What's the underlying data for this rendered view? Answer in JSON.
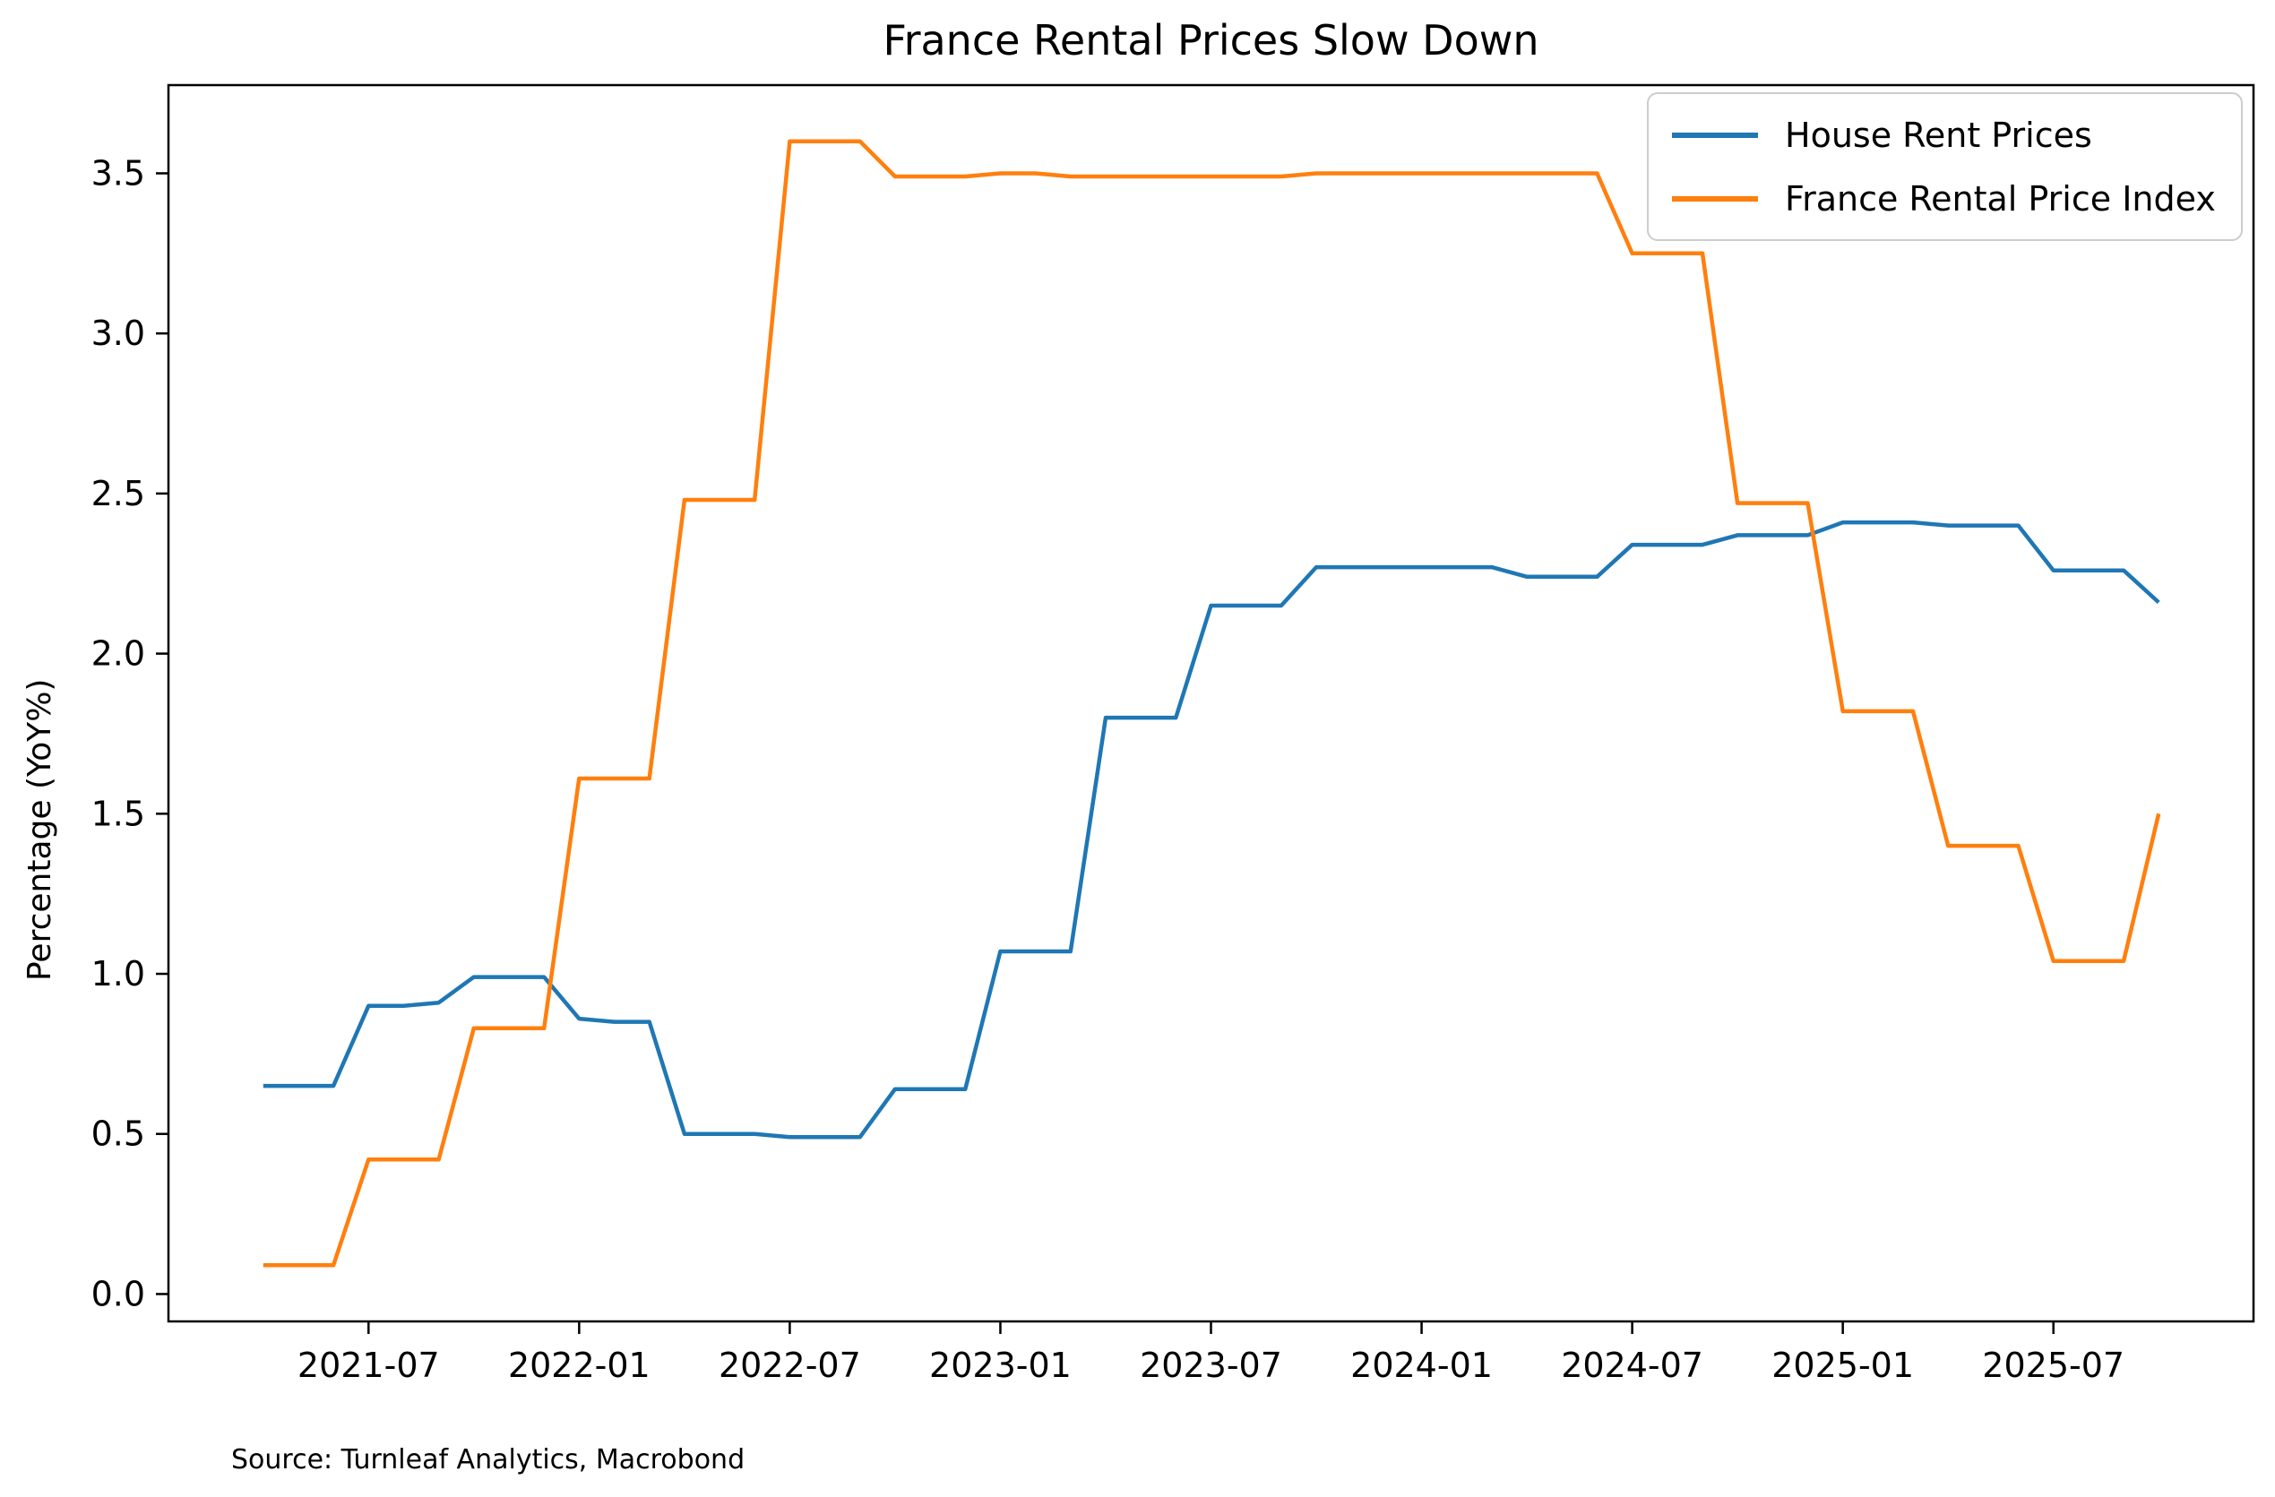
{
  "title": "France Rental Prices Slow Down",
  "source": "Source: Turnleaf Analytics, Macrobond",
  "y_axis_label": "Percentage (YoY%)",
  "legend": {
    "items": [
      {
        "label": "House Rent Prices",
        "color": "#1f77b4"
      },
      {
        "label": "France Rental Price Index",
        "color": "#ff7f0e"
      }
    ]
  },
  "chart_data": {
    "type": "line",
    "title": "France Rental Prices Slow Down",
    "xlabel": "",
    "ylabel": "Percentage (YoY%)",
    "grid": false,
    "legend_position": "upper right",
    "axis_color": "#000000",
    "x": [
      "2021-04",
      "2021-05",
      "2021-06",
      "2021-07",
      "2021-08",
      "2021-09",
      "2021-10",
      "2021-11",
      "2021-12",
      "2022-01",
      "2022-02",
      "2022-03",
      "2022-04",
      "2022-05",
      "2022-06",
      "2022-07",
      "2022-08",
      "2022-09",
      "2022-10",
      "2022-11",
      "2022-12",
      "2023-01",
      "2023-02",
      "2023-03",
      "2023-04",
      "2023-05",
      "2023-06",
      "2023-07",
      "2023-08",
      "2023-09",
      "2023-10",
      "2023-11",
      "2023-12",
      "2024-01",
      "2024-02",
      "2024-03",
      "2024-04",
      "2024-05",
      "2024-06",
      "2024-07",
      "2024-08",
      "2024-09",
      "2024-10",
      "2024-11",
      "2024-12",
      "2025-01",
      "2025-02",
      "2025-03",
      "2025-04",
      "2025-05",
      "2025-06",
      "2025-07",
      "2025-08",
      "2025-09",
      "2025-10"
    ],
    "series": [
      {
        "name": "House Rent Prices",
        "color": "#1f77b4",
        "values": [
          0.65,
          0.65,
          0.65,
          0.9,
          0.9,
          0.91,
          0.99,
          0.99,
          0.99,
          0.86,
          0.85,
          0.85,
          0.5,
          0.5,
          0.5,
          0.49,
          0.49,
          0.49,
          0.64,
          0.64,
          0.64,
          1.07,
          1.07,
          1.07,
          1.8,
          1.8,
          1.8,
          2.15,
          2.15,
          2.15,
          2.27,
          2.27,
          2.27,
          2.27,
          2.27,
          2.27,
          2.24,
          2.24,
          2.24,
          2.34,
          2.34,
          2.34,
          2.37,
          2.37,
          2.37,
          2.41,
          2.41,
          2.41,
          2.4,
          2.4,
          2.4,
          2.26,
          2.26,
          2.26,
          2.16
        ]
      },
      {
        "name": "France Rental Price Index",
        "color": "#ff7f0e",
        "values": [
          0.09,
          0.09,
          0.09,
          0.42,
          0.42,
          0.42,
          0.83,
          0.83,
          0.83,
          1.61,
          1.61,
          1.61,
          2.48,
          2.48,
          2.48,
          3.6,
          3.6,
          3.6,
          3.49,
          3.49,
          3.49,
          3.5,
          3.5,
          3.49,
          3.49,
          3.49,
          3.49,
          3.49,
          3.49,
          3.49,
          3.5,
          3.5,
          3.5,
          3.5,
          3.5,
          3.5,
          3.5,
          3.5,
          3.5,
          3.25,
          3.25,
          3.25,
          2.47,
          2.47,
          2.47,
          1.82,
          1.82,
          1.82,
          1.4,
          1.4,
          1.4,
          1.04,
          1.04,
          1.04,
          1.5
        ]
      }
    ],
    "y_ticks": [
      {
        "value": 0.0,
        "label": "0.0"
      },
      {
        "value": 0.5,
        "label": "0.5"
      },
      {
        "value": 1.0,
        "label": "1.0"
      },
      {
        "value": 1.5,
        "label": "1.5"
      },
      {
        "value": 2.0,
        "label": "2.0"
      },
      {
        "value": 2.5,
        "label": "2.5"
      },
      {
        "value": 3.0,
        "label": "3.0"
      },
      {
        "value": 3.5,
        "label": "3.5"
      }
    ],
    "x_tick_labels": [
      "2021-07",
      "2022-01",
      "2022-07",
      "2023-01",
      "2023-07",
      "2024-01",
      "2024-07",
      "2025-01",
      "2025-07"
    ],
    "ylim": [
      -0.0855,
      3.7755
    ],
    "x_pad_months": 2.7
  }
}
